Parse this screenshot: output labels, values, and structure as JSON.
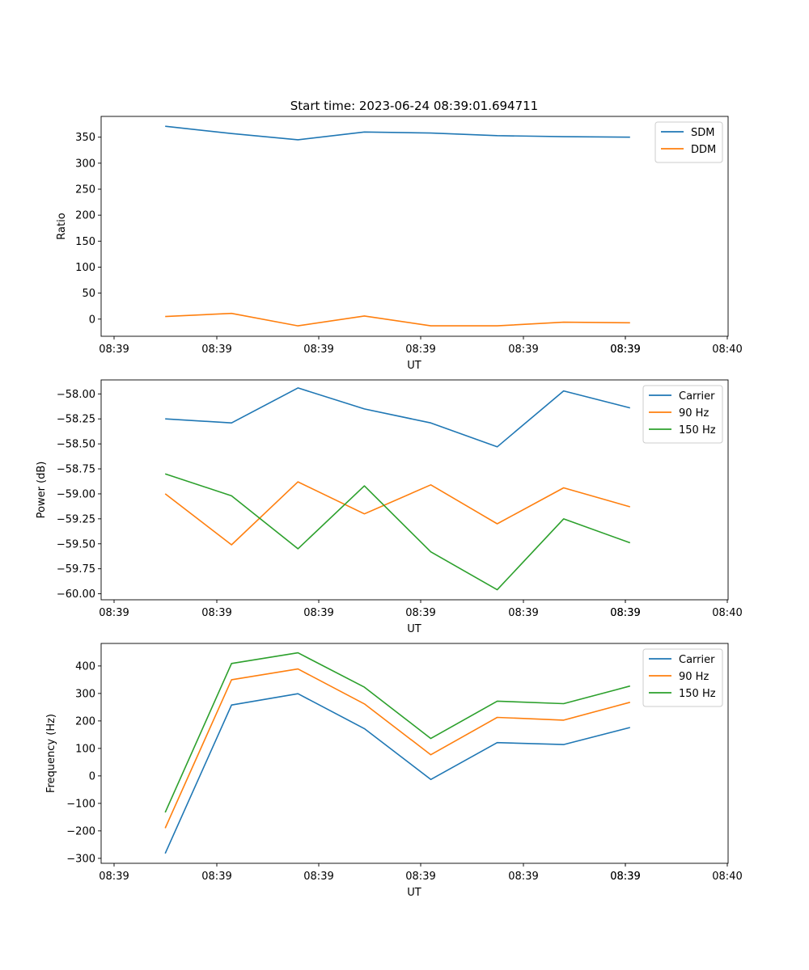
{
  "figure_title": "Start time: 2023-06-24 08:39:01.694711",
  "colors": {
    "c0": "#1f77b4",
    "c1": "#ff7f0e",
    "c2": "#2ca02c",
    "axes": "#000000",
    "background": "#ffffff"
  },
  "chart_data": [
    {
      "type": "line",
      "title": "",
      "xlabel": "UT",
      "ylabel": "Ratio",
      "xticklabels": [
        "08:39",
        "08:39",
        "08:39",
        "08:39",
        "08:39",
        "08:39",
        "08:39",
        "08:40"
      ],
      "yticks": [
        "0",
        "50",
        "100",
        "150",
        "200",
        "250",
        "300",
        "350"
      ],
      "ylim": [
        -33,
        390
      ],
      "legend": "top-right",
      "grid": false,
      "series": [
        {
          "name": "SDM",
          "color": "#1f77b4",
          "x": [
            1.5,
            2.15,
            2.8,
            3.45,
            4.1,
            4.75,
            5.4,
            6.05
          ],
          "y": [
            371,
            357,
            345,
            360,
            358,
            353,
            351,
            350
          ]
        },
        {
          "name": "DDM",
          "color": "#ff7f0e",
          "x": [
            1.5,
            2.15,
            2.8,
            3.45,
            4.1,
            4.75,
            5.4,
            6.05
          ],
          "y": [
            5,
            11,
            -13,
            6,
            -13,
            -13,
            -6,
            -7
          ]
        }
      ]
    },
    {
      "type": "line",
      "title": "",
      "xlabel": "UT",
      "ylabel": "Power (dB)",
      "xticklabels": [
        "08:39",
        "08:39",
        "08:39",
        "08:39",
        "08:39",
        "08:39",
        "08:39",
        "08:40"
      ],
      "yticks": [
        "−60.00",
        "−59.75",
        "−59.50",
        "−59.25",
        "−59.00",
        "−58.75",
        "−58.50",
        "−58.25",
        "−58.00"
      ],
      "ylim": [
        -60.06,
        -57.86
      ],
      "legend": "top-right",
      "grid": false,
      "series": [
        {
          "name": "Carrier",
          "color": "#1f77b4",
          "x": [
            1.5,
            2.15,
            2.8,
            3.45,
            4.1,
            4.75,
            5.4,
            6.05
          ],
          "y": [
            -58.25,
            -58.29,
            -57.94,
            -58.15,
            -58.29,
            -58.53,
            -57.97,
            -58.14
          ]
        },
        {
          "name": "90 Hz",
          "color": "#ff7f0e",
          "x": [
            1.5,
            2.15,
            2.8,
            3.45,
            4.1,
            4.75,
            5.4,
            6.05
          ],
          "y": [
            -59.0,
            -59.51,
            -58.88,
            -59.2,
            -58.91,
            -59.3,
            -58.94,
            -59.13
          ]
        },
        {
          "name": "150 Hz",
          "color": "#2ca02c",
          "x": [
            1.5,
            2.15,
            2.8,
            3.45,
            4.1,
            4.75,
            5.4,
            6.05
          ],
          "y": [
            -58.8,
            -59.02,
            -59.55,
            -58.92,
            -59.58,
            -59.96,
            -59.25,
            -59.49
          ]
        }
      ]
    },
    {
      "type": "line",
      "title": "",
      "xlabel": "UT",
      "ylabel": "Frequency (Hz)",
      "xticklabels": [
        "08:39",
        "08:39",
        "08:39",
        "08:39",
        "08:39",
        "08:39",
        "08:39",
        "08:40"
      ],
      "yticks": [
        "−300",
        "−200",
        "−100",
        "0",
        "100",
        "200",
        "300",
        "400"
      ],
      "ylim": [
        -318,
        482
      ],
      "legend": "top-right",
      "grid": false,
      "series": [
        {
          "name": "Carrier",
          "color": "#1f77b4",
          "x": [
            1.5,
            2.15,
            2.8,
            3.45,
            4.1,
            4.75,
            5.4,
            6.05
          ],
          "y": [
            -282,
            258,
            299,
            172,
            -13,
            121,
            114,
            176
          ]
        },
        {
          "name": "90 Hz",
          "color": "#ff7f0e",
          "x": [
            1.5,
            2.15,
            2.8,
            3.45,
            4.1,
            4.75,
            5.4,
            6.05
          ],
          "y": [
            -190,
            350,
            389,
            262,
            77,
            213,
            203,
            268
          ]
        },
        {
          "name": "150 Hz",
          "color": "#2ca02c",
          "x": [
            1.5,
            2.15,
            2.8,
            3.45,
            4.1,
            4.75,
            5.4,
            6.05
          ],
          "y": [
            -133,
            409,
            448,
            323,
            136,
            272,
            263,
            327
          ]
        }
      ]
    }
  ]
}
